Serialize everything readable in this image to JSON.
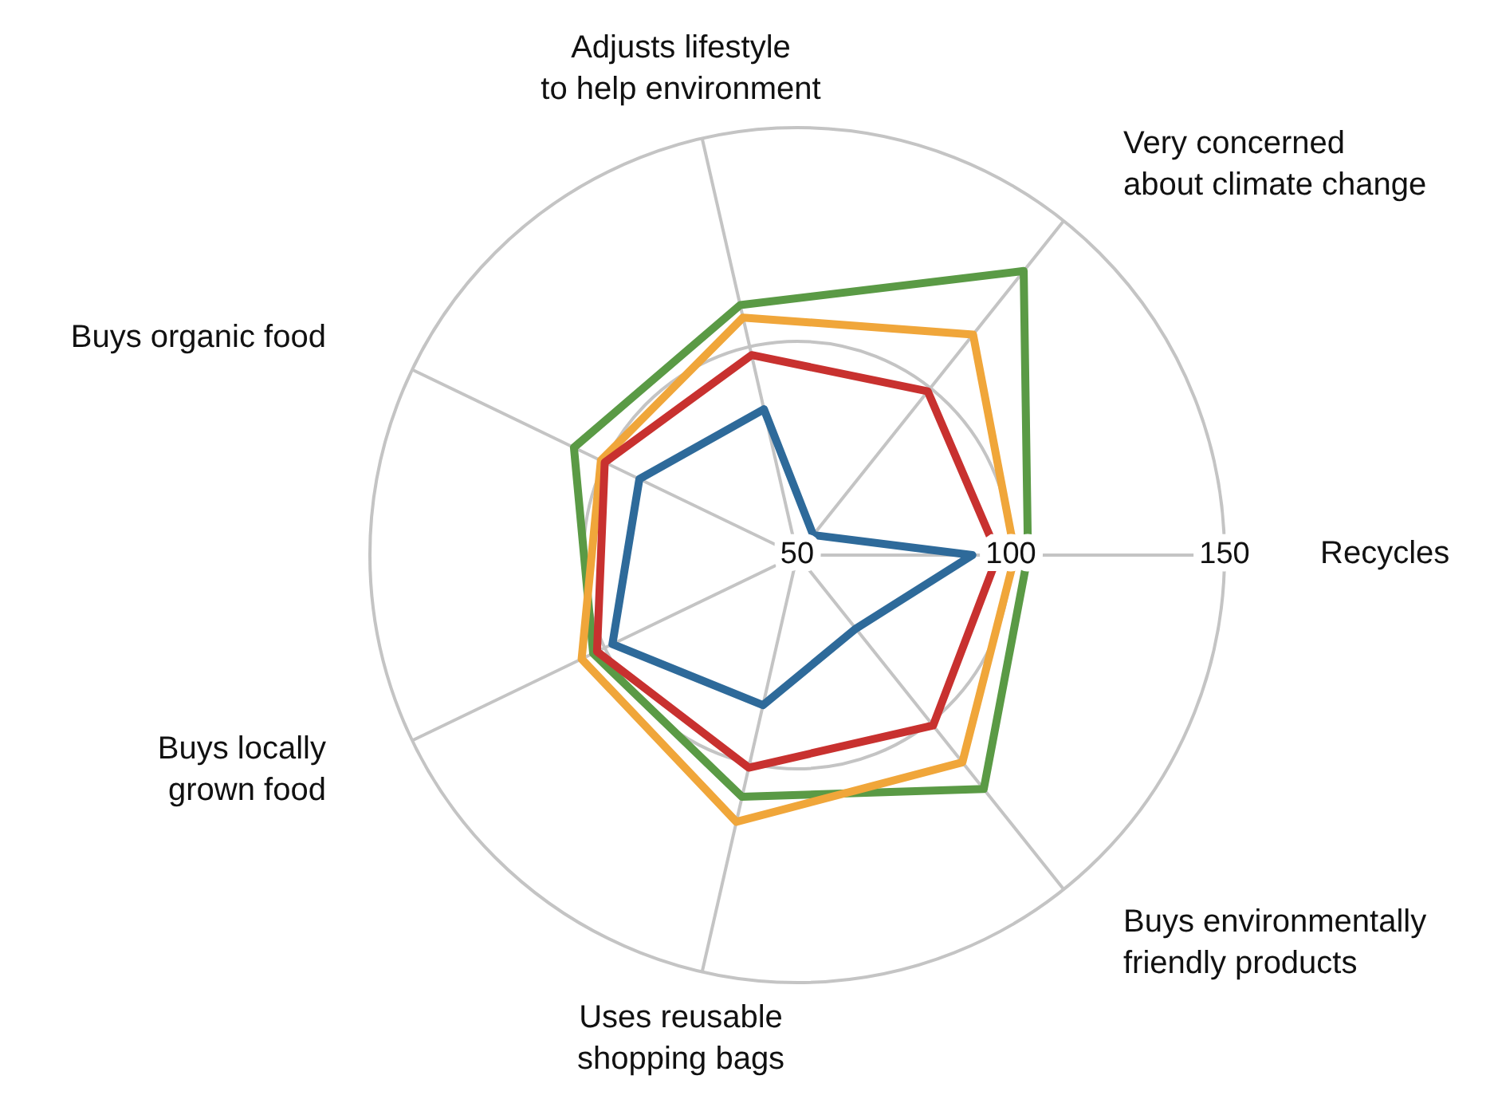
{
  "chart_data": {
    "type": "radar",
    "categories": [
      "Very concerned about climate change",
      "Recycles",
      "Buys environmentally friendly products",
      "Uses reusable shopping bags",
      "Buys locally grown food",
      "Buys organic food",
      "Adjusts lifestyle to help environment"
    ],
    "series": [
      {
        "color": "#2e6a9a",
        "values": [
          56,
          91,
          72,
          86,
          98,
          91,
          85
        ]
      },
      {
        "color": "#5a9a45",
        "values": [
          135,
          104,
          120,
          108,
          103,
          108,
          110
        ]
      },
      {
        "color": "#f0a63a",
        "values": [
          116,
          101,
          112,
          114,
          106,
          101,
          107
        ]
      },
      {
        "color": "#c8312f",
        "values": [
          99,
          97,
          101,
          101,
          102,
          100,
          98
        ]
      }
    ],
    "ylim": [
      50,
      150
    ],
    "yticks": [
      50,
      100,
      150
    ],
    "grid": true,
    "marker": "none",
    "line_style": "solid"
  }
}
